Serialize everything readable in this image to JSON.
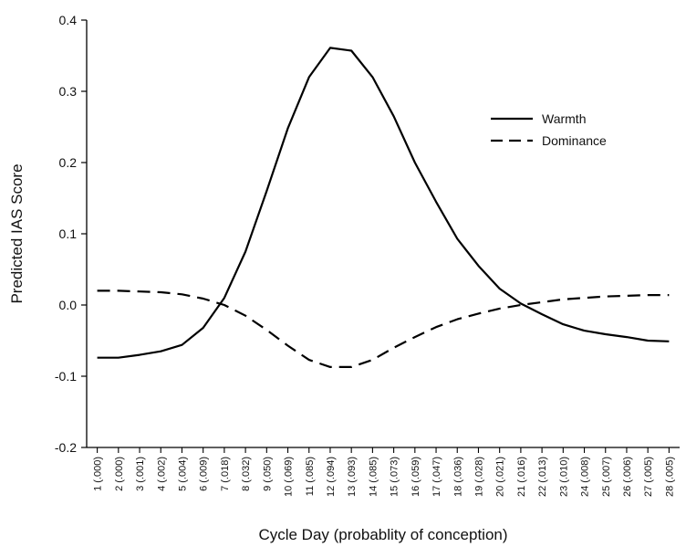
{
  "chart_data": {
    "type": "line",
    "title": "",
    "xlabel": "Cycle Day (probablity of conception)",
    "ylabel": "Predicted IAS Score",
    "ylim": [
      -0.2,
      0.4
    ],
    "yticks": [
      "-0.2",
      "-0.1",
      "0.0",
      "0.1",
      "0.2",
      "0.3",
      "0.4"
    ],
    "grid": false,
    "legend_position": "top-right",
    "categories": [
      "1 (.000)",
      "2 (.000)",
      "3 (.001)",
      "4 (.002)",
      "5 (.004)",
      "6 (.009)",
      "7 (.018)",
      "8 (.032)",
      "9 (.050)",
      "10 (.069)",
      "11 (.085)",
      "12 (.094)",
      "13 (.093)",
      "14 (.085)",
      "15 (.073)",
      "16 (.059)",
      "17 (.047)",
      "18 (.036)",
      "19 (.028)",
      "20 (.021)",
      "21 (.016)",
      "22 (.013)",
      "23 (.010)",
      "24 (.008)",
      "25 (.007)",
      "26 (.006)",
      "27 (.005)",
      "28 (.005)"
    ],
    "series": [
      {
        "name": "Warmth",
        "style": "solid",
        "values": [
          -0.074,
          -0.074,
          -0.07,
          -0.065,
          -0.056,
          -0.032,
          0.01,
          0.075,
          0.16,
          0.248,
          0.32,
          0.361,
          0.357,
          0.32,
          0.265,
          0.2,
          0.145,
          0.093,
          0.055,
          0.023,
          0.002,
          -0.013,
          -0.027,
          -0.036,
          -0.041,
          -0.045,
          -0.05,
          -0.051
        ]
      },
      {
        "name": "Dominance",
        "style": "dashed",
        "values": [
          0.02,
          0.02,
          0.019,
          0.018,
          0.015,
          0.009,
          0.0,
          -0.015,
          -0.035,
          -0.057,
          -0.077,
          -0.087,
          -0.087,
          -0.077,
          -0.06,
          -0.045,
          -0.031,
          -0.02,
          -0.012,
          -0.005,
          0.0,
          0.004,
          0.008,
          0.01,
          0.012,
          0.013,
          0.014,
          0.014
        ]
      }
    ]
  }
}
